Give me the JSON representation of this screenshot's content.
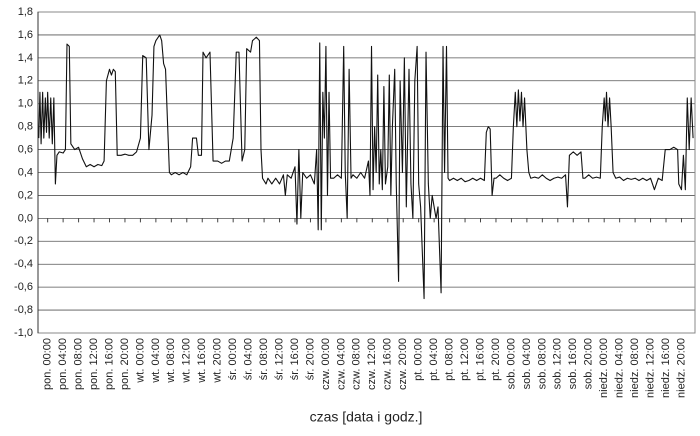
{
  "chart_data": {
    "type": "line",
    "xlabel": "czas [data i godz.]",
    "xlim": [
      -2.5,
      167.5
    ],
    "ylim": [
      -1.0,
      1.8
    ],
    "yticks": [
      {
        "value": 1.8,
        "label": "1,8"
      },
      {
        "value": 1.6,
        "label": "1,6"
      },
      {
        "value": 1.4,
        "label": "1,4"
      },
      {
        "value": 1.2,
        "label": "1,2"
      },
      {
        "value": 1.0,
        "label": "1,0"
      },
      {
        "value": 0.8,
        "label": "0,8"
      },
      {
        "value": 0.6,
        "label": "0,6"
      },
      {
        "value": 0.4,
        "label": "0,4"
      },
      {
        "value": 0.2,
        "label": "0,2"
      },
      {
        "value": 0,
        "label": "0,0"
      },
      {
        "value": -0.2,
        "label": "-0,2"
      },
      {
        "value": -0.4,
        "label": "-0,4"
      },
      {
        "value": -0.6,
        "label": "-0,6"
      },
      {
        "value": -0.8,
        "label": "-0,8"
      },
      {
        "value": -1.0,
        "label": "-1,0"
      }
    ],
    "xticks": [
      {
        "value": 0,
        "label": "pon. 00:00"
      },
      {
        "value": 4,
        "label": "pon. 04:00"
      },
      {
        "value": 8,
        "label": "pon. 08:00"
      },
      {
        "value": 12,
        "label": "pon. 12:00"
      },
      {
        "value": 16,
        "label": "pon. 16:00"
      },
      {
        "value": 20,
        "label": "pon. 20:00"
      },
      {
        "value": 24,
        "label": "wt. 00:00"
      },
      {
        "value": 28,
        "label": "wt. 04:00"
      },
      {
        "value": 32,
        "label": "wt. 08:00"
      },
      {
        "value": 36,
        "label": "wt. 12:00"
      },
      {
        "value": 40,
        "label": "wt. 16:00"
      },
      {
        "value": 44,
        "label": "wt. 20:00"
      },
      {
        "value": 48,
        "label": "śr. 00:00"
      },
      {
        "value": 52,
        "label": "śr. 04:00"
      },
      {
        "value": 56,
        "label": "śr. 08:00"
      },
      {
        "value": 60,
        "label": "śr. 12:00"
      },
      {
        "value": 64,
        "label": "śr. 16:00"
      },
      {
        "value": 68,
        "label": "śr. 20:00"
      },
      {
        "value": 72,
        "label": "czw. 00:00"
      },
      {
        "value": 76,
        "label": "czw. 04:00"
      },
      {
        "value": 80,
        "label": "czw. 08:00"
      },
      {
        "value": 84,
        "label": "czw. 12:00"
      },
      {
        "value": 88,
        "label": "czw. 16:00"
      },
      {
        "value": 92,
        "label": "czw. 20:00"
      },
      {
        "value": 96,
        "label": "pt. 00:00"
      },
      {
        "value": 100,
        "label": "pt. 04:00"
      },
      {
        "value": 104,
        "label": "pt. 08:00"
      },
      {
        "value": 108,
        "label": "pt. 12:00"
      },
      {
        "value": 112,
        "label": "pt. 16:00"
      },
      {
        "value": 116,
        "label": "pt. 20:00"
      },
      {
        "value": 120,
        "label": "sob. 00:00"
      },
      {
        "value": 124,
        "label": "sob. 04:00"
      },
      {
        "value": 128,
        "label": "sob. 08:00"
      },
      {
        "value": 132,
        "label": "sob. 12:00"
      },
      {
        "value": 136,
        "label": "sob. 16:00"
      },
      {
        "value": 140,
        "label": "sob. 20:00"
      },
      {
        "value": 144,
        "label": "niedz. 00:00"
      },
      {
        "value": 148,
        "label": "niedz. 04:00"
      },
      {
        "value": 152,
        "label": "niedz. 08:00"
      },
      {
        "value": 156,
        "label": "niedz. 12:00"
      },
      {
        "value": 160,
        "label": "niedz. 16:00"
      },
      {
        "value": 164,
        "label": "niedz. 20:00"
      }
    ],
    "grid": true,
    "color": "#111111",
    "x": [
      -2.3,
      -2,
      -1.7,
      -1.3,
      -1,
      -0.6,
      -0.3,
      0,
      0.4,
      0.8,
      1.2,
      1.6,
      2,
      2.4,
      3,
      4,
      4.6,
      5,
      5.6,
      6,
      7,
      8,
      9,
      10,
      11,
      12,
      13,
      14,
      14.6,
      15.2,
      16,
      16.5,
      17,
      17.5,
      18,
      19,
      20,
      21,
      22,
      23,
      24,
      24.6,
      25.5,
      26.2,
      27,
      27.5,
      28,
      29,
      29.5,
      30,
      30.5,
      31.5,
      32,
      33,
      34,
      35,
      36,
      37,
      37.5,
      38.5,
      39,
      39.8,
      40.2,
      41,
      42,
      42.8,
      44,
      45,
      46,
      47,
      48,
      48.8,
      49.5,
      50.3,
      51,
      51.5,
      52.5,
      53,
      54,
      54.8,
      55.2,
      55.6,
      56.5,
      57,
      58,
      59,
      60,
      61,
      61.5,
      62,
      63,
      64,
      64.5,
      65,
      65.5,
      66,
      67,
      68,
      69,
      69.6,
      70,
      70.4,
      70.8,
      71.2,
      71.6,
      72,
      72.4,
      72.8,
      73.2,
      74,
      75,
      76,
      76.6,
      77,
      77.5,
      78,
      78.5,
      79,
      80,
      81,
      82,
      83,
      83.4,
      83.8,
      84.2,
      84.6,
      85,
      85.4,
      85.8,
      86.2,
      86.6,
      87,
      87.4,
      88,
      88.4,
      88.8,
      89.2,
      89.8,
      90.2,
      90.8,
      91.2,
      91.8,
      92.3,
      92.8,
      93.5,
      94,
      94.5,
      95,
      95.6,
      96,
      96.5,
      97.4,
      97.9,
      98.5,
      99,
      99.5,
      100.5,
      101,
      101.8,
      102.3,
      102.7,
      103.2,
      103.6,
      104,
      105,
      106,
      107,
      108,
      109,
      110,
      111,
      112,
      113,
      113.5,
      114,
      114.5,
      115,
      115.5,
      116,
      117,
      118,
      119,
      120,
      120.5,
      121,
      121.4,
      121.8,
      122.2,
      122.6,
      123,
      123.4,
      124,
      124.5,
      125,
      126,
      127,
      128,
      129,
      130,
      131,
      132,
      133,
      134,
      134.5,
      135,
      136,
      137,
      138,
      138.5,
      139,
      140,
      141,
      142,
      143,
      143.5,
      144,
      144.3,
      144.6,
      145,
      145.4,
      145.8,
      146.3,
      147,
      148,
      149,
      150,
      151,
      152,
      153,
      154,
      155,
      156,
      157,
      158,
      159,
      159.8,
      161,
      162,
      163,
      163.3,
      164,
      164.5,
      165,
      165.5,
      166,
      166.5,
      167
    ],
    "values": [
      0.7,
      1.1,
      0.65,
      1.1,
      0.7,
      1.05,
      0.75,
      1.1,
      0.7,
      1.05,
      0.65,
      1.05,
      0.3,
      0.55,
      0.58,
      0.57,
      0.6,
      1.52,
      1.5,
      0.65,
      0.6,
      0.62,
      0.52,
      0.45,
      0.47,
      0.45,
      0.47,
      0.46,
      0.5,
      1.2,
      1.3,
      1.25,
      1.3,
      1.28,
      0.55,
      0.55,
      0.56,
      0.55,
      0.55,
      0.58,
      0.7,
      1.42,
      1.4,
      0.6,
      0.9,
      1.5,
      1.55,
      1.6,
      1.55,
      1.35,
      1.3,
      0.4,
      0.38,
      0.4,
      0.38,
      0.4,
      0.38,
      0.45,
      0.7,
      0.7,
      0.55,
      0.55,
      1.45,
      1.4,
      1.45,
      0.5,
      0.5,
      0.48,
      0.5,
      0.5,
      0.7,
      1.45,
      1.45,
      0.5,
      0.6,
      1.48,
      1.45,
      1.55,
      1.58,
      1.55,
      0.6,
      0.35,
      0.3,
      0.35,
      0.3,
      0.35,
      0.3,
      0.38,
      0.2,
      0.38,
      0.35,
      0.45,
      -0.05,
      0.6,
      0,
      0.4,
      0.35,
      0.38,
      0.3,
      0.6,
      -0.1,
      1.53,
      -0.1,
      1.1,
      0.7,
      1.5,
      0.2,
      1.1,
      0.35,
      0.35,
      0.38,
      0.35,
      1.5,
      0.4,
      0,
      1.3,
      0.35,
      0.38,
      0.35,
      0.4,
      0.35,
      0.5,
      0.2,
      1.5,
      0.25,
      0.8,
      0.4,
      1.25,
      0.3,
      0.6,
      0.25,
      1.15,
      0.3,
      0.45,
      1.25,
      0.2,
      0.8,
      1.3,
      0.3,
      -0.55,
      1.2,
      0.4,
      1.4,
      0.1,
      1.3,
      0.3,
      0,
      1.2,
      1.5,
      0.3,
      0.1,
      -0.7,
      1.45,
      0.3,
      0,
      0.2,
      0,
      0.1,
      -0.65,
      1.5,
      0.4,
      1.5,
      0.35,
      0.33,
      0.35,
      0.33,
      0.35,
      0.32,
      0.33,
      0.35,
      0.33,
      0.35,
      0.33,
      0.75,
      0.8,
      0.78,
      0.2,
      0.35,
      0.35,
      0.38,
      0.35,
      0.33,
      0.35,
      0.8,
      1.1,
      0.8,
      1.12,
      0.85,
      1.1,
      0.8,
      1.05,
      0.6,
      0.4,
      0.35,
      0.36,
      0.35,
      0.38,
      0.35,
      0.33,
      0.35,
      0.36,
      0.35,
      0.38,
      0.1,
      0.55,
      0.58,
      0.55,
      0.58,
      0.35,
      0.35,
      0.38,
      0.35,
      0.36,
      0.35,
      0.8,
      1.05,
      0.85,
      1.1,
      0.8,
      1.05,
      0.8,
      0.4,
      0.35,
      0.36,
      0.33,
      0.35,
      0.34,
      0.35,
      0.33,
      0.35,
      0.33,
      0.35,
      0.25,
      0.35,
      0.33,
      0.6,
      0.6,
      0.62,
      0.6,
      0.3,
      0.25,
      0.55,
      0.25,
      1.05,
      0.6,
      1.05,
      0.7
    ]
  }
}
